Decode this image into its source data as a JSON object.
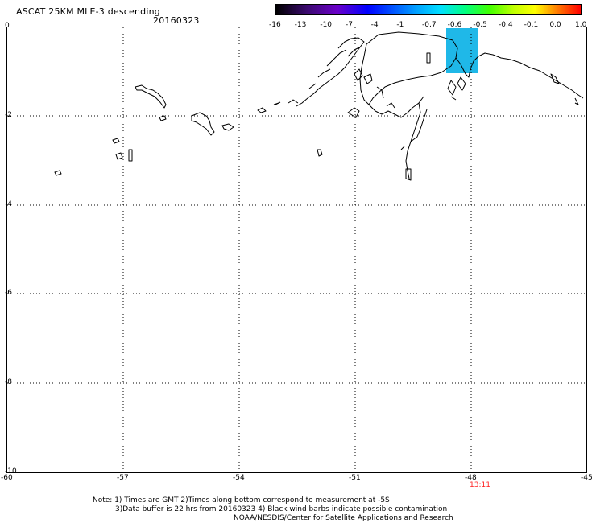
{
  "header": {
    "title": "ASCAT 25KM MLE-3 descending",
    "date": "20160323"
  },
  "colorbar": {
    "labels": [
      "-16",
      "-13",
      "-10",
      "-7",
      "-4",
      "-1",
      "-0.7",
      "-0.6",
      "-0.5",
      "-0.4",
      "-0.1",
      "0.0",
      "1.0"
    ],
    "colors": [
      "#000000",
      "#3a0a6e",
      "#6a00c8",
      "#0000ff",
      "#0050ff",
      "#00a0ff",
      "#00e0ff",
      "#00ff80",
      "#40ff00",
      "#c0ff00",
      "#ffff00",
      "#ff8000",
      "#ff0000"
    ]
  },
  "map": {
    "lon_ticks": [
      "-60",
      "-57",
      "-54",
      "-51",
      "-48",
      "-45"
    ],
    "lat_ticks": [
      "0",
      "-2",
      "-4",
      "-6",
      "-8",
      "-10"
    ],
    "lon_range": [
      -60,
      -45
    ],
    "lat_range": [
      -10,
      0
    ],
    "grid": true,
    "time_label": "13:11",
    "time_color": "#ff2020",
    "swath_color": "#1fb8e8"
  },
  "footer": {
    "line1": "Note: 1) Times are GMT 2)Times along bottom correspond to measurement at -5S",
    "line2": "3)Data buffer is 22 hrs from 20160323 4) Black wind barbs indicate possible contamination",
    "line3": "NOAA/NESDIS/Center for Satellite Applications and Research"
  }
}
